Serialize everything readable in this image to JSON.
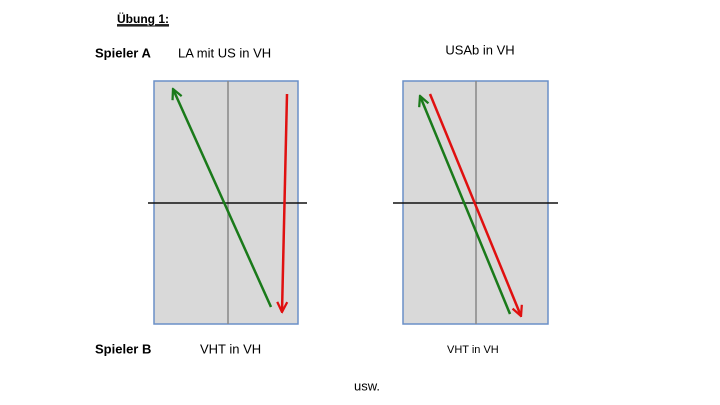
{
  "title": "Übung 1:",
  "player_a": {
    "label": "Spieler A",
    "left_caption": "LA mit US in VH",
    "right_caption": "USAb in VH"
  },
  "player_b": {
    "label": "Spieler B",
    "left_caption": "VHT in VH",
    "right_caption": "VHT in VH"
  },
  "footer": "usw."
}
